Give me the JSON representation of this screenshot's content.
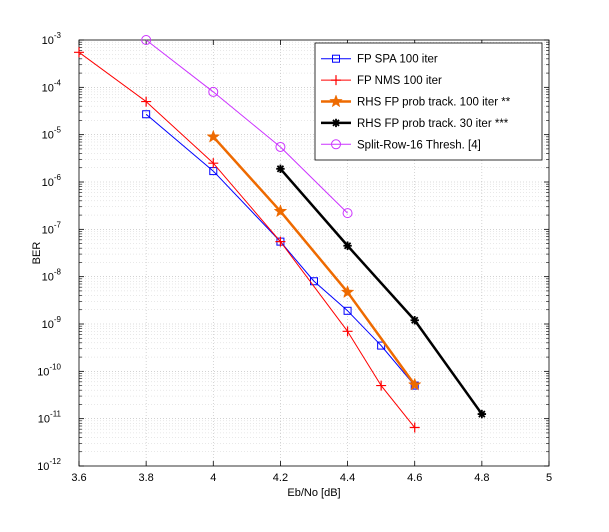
{
  "chart_data": {
    "type": "line",
    "title": "",
    "xlabel": "Eb/No [dB]",
    "ylabel": "BER",
    "xlim": [
      3.6,
      5.0
    ],
    "ylim_exp": [
      -12,
      -3
    ],
    "y_scale": "log",
    "grid": true,
    "legend_position": "top-right",
    "x_ticks": [
      "3.6",
      "3.8",
      "4",
      "4.2",
      "4.4",
      "4.6",
      "4.8",
      "5"
    ],
    "y_tick_exponents": [
      "-12",
      "-11",
      "-10",
      "-9",
      "-8",
      "-7",
      "-6",
      "-5",
      "-4",
      "-3"
    ],
    "series": [
      {
        "name": "FP SPA 100 iter",
        "color": "#0000ff",
        "marker": "square",
        "line_width": 1,
        "x": [
          3.8,
          4.0,
          4.2,
          4.3,
          4.4,
          4.5,
          4.6
        ],
        "y": [
          2.7e-05,
          1.7e-06,
          5.5e-08,
          8e-09,
          1.9e-09,
          3.5e-10,
          5e-11
        ]
      },
      {
        "name": "FP NMS 100 iter",
        "color": "#ff0000",
        "marker": "plus",
        "line_width": 1,
        "x": [
          3.6,
          3.8,
          4.0,
          4.2,
          4.4,
          4.5,
          4.6
        ],
        "y": [
          0.00055,
          5e-05,
          2.5e-06,
          5.5e-08,
          7e-10,
          5e-11,
          6.5e-12
        ]
      },
      {
        "name": "RHS FP prob track. 100 iter **",
        "color": "#ee6a00",
        "marker": "star",
        "line_width": 2.5,
        "x": [
          4.0,
          4.2,
          4.4,
          4.6
        ],
        "y": [
          9e-06,
          2.4e-07,
          4.7e-09,
          5.2e-11
        ]
      },
      {
        "name": "RHS FP prob track. 30 iter ***",
        "color": "#000000",
        "marker": "asterisk",
        "line_width": 2.5,
        "x": [
          4.2,
          4.4,
          4.6,
          4.8
        ],
        "y": [
          1.9e-06,
          4.5e-08,
          1.2e-09,
          1.25e-11
        ]
      },
      {
        "name": "Split-Row-16 Thresh. [4]",
        "color": "#cc33ff",
        "marker": "circle",
        "line_width": 1,
        "x": [
          3.8,
          4.0,
          4.2,
          4.4
        ],
        "y": [
          0.001,
          8e-05,
          5.5e-06,
          2.2e-07
        ]
      }
    ]
  }
}
